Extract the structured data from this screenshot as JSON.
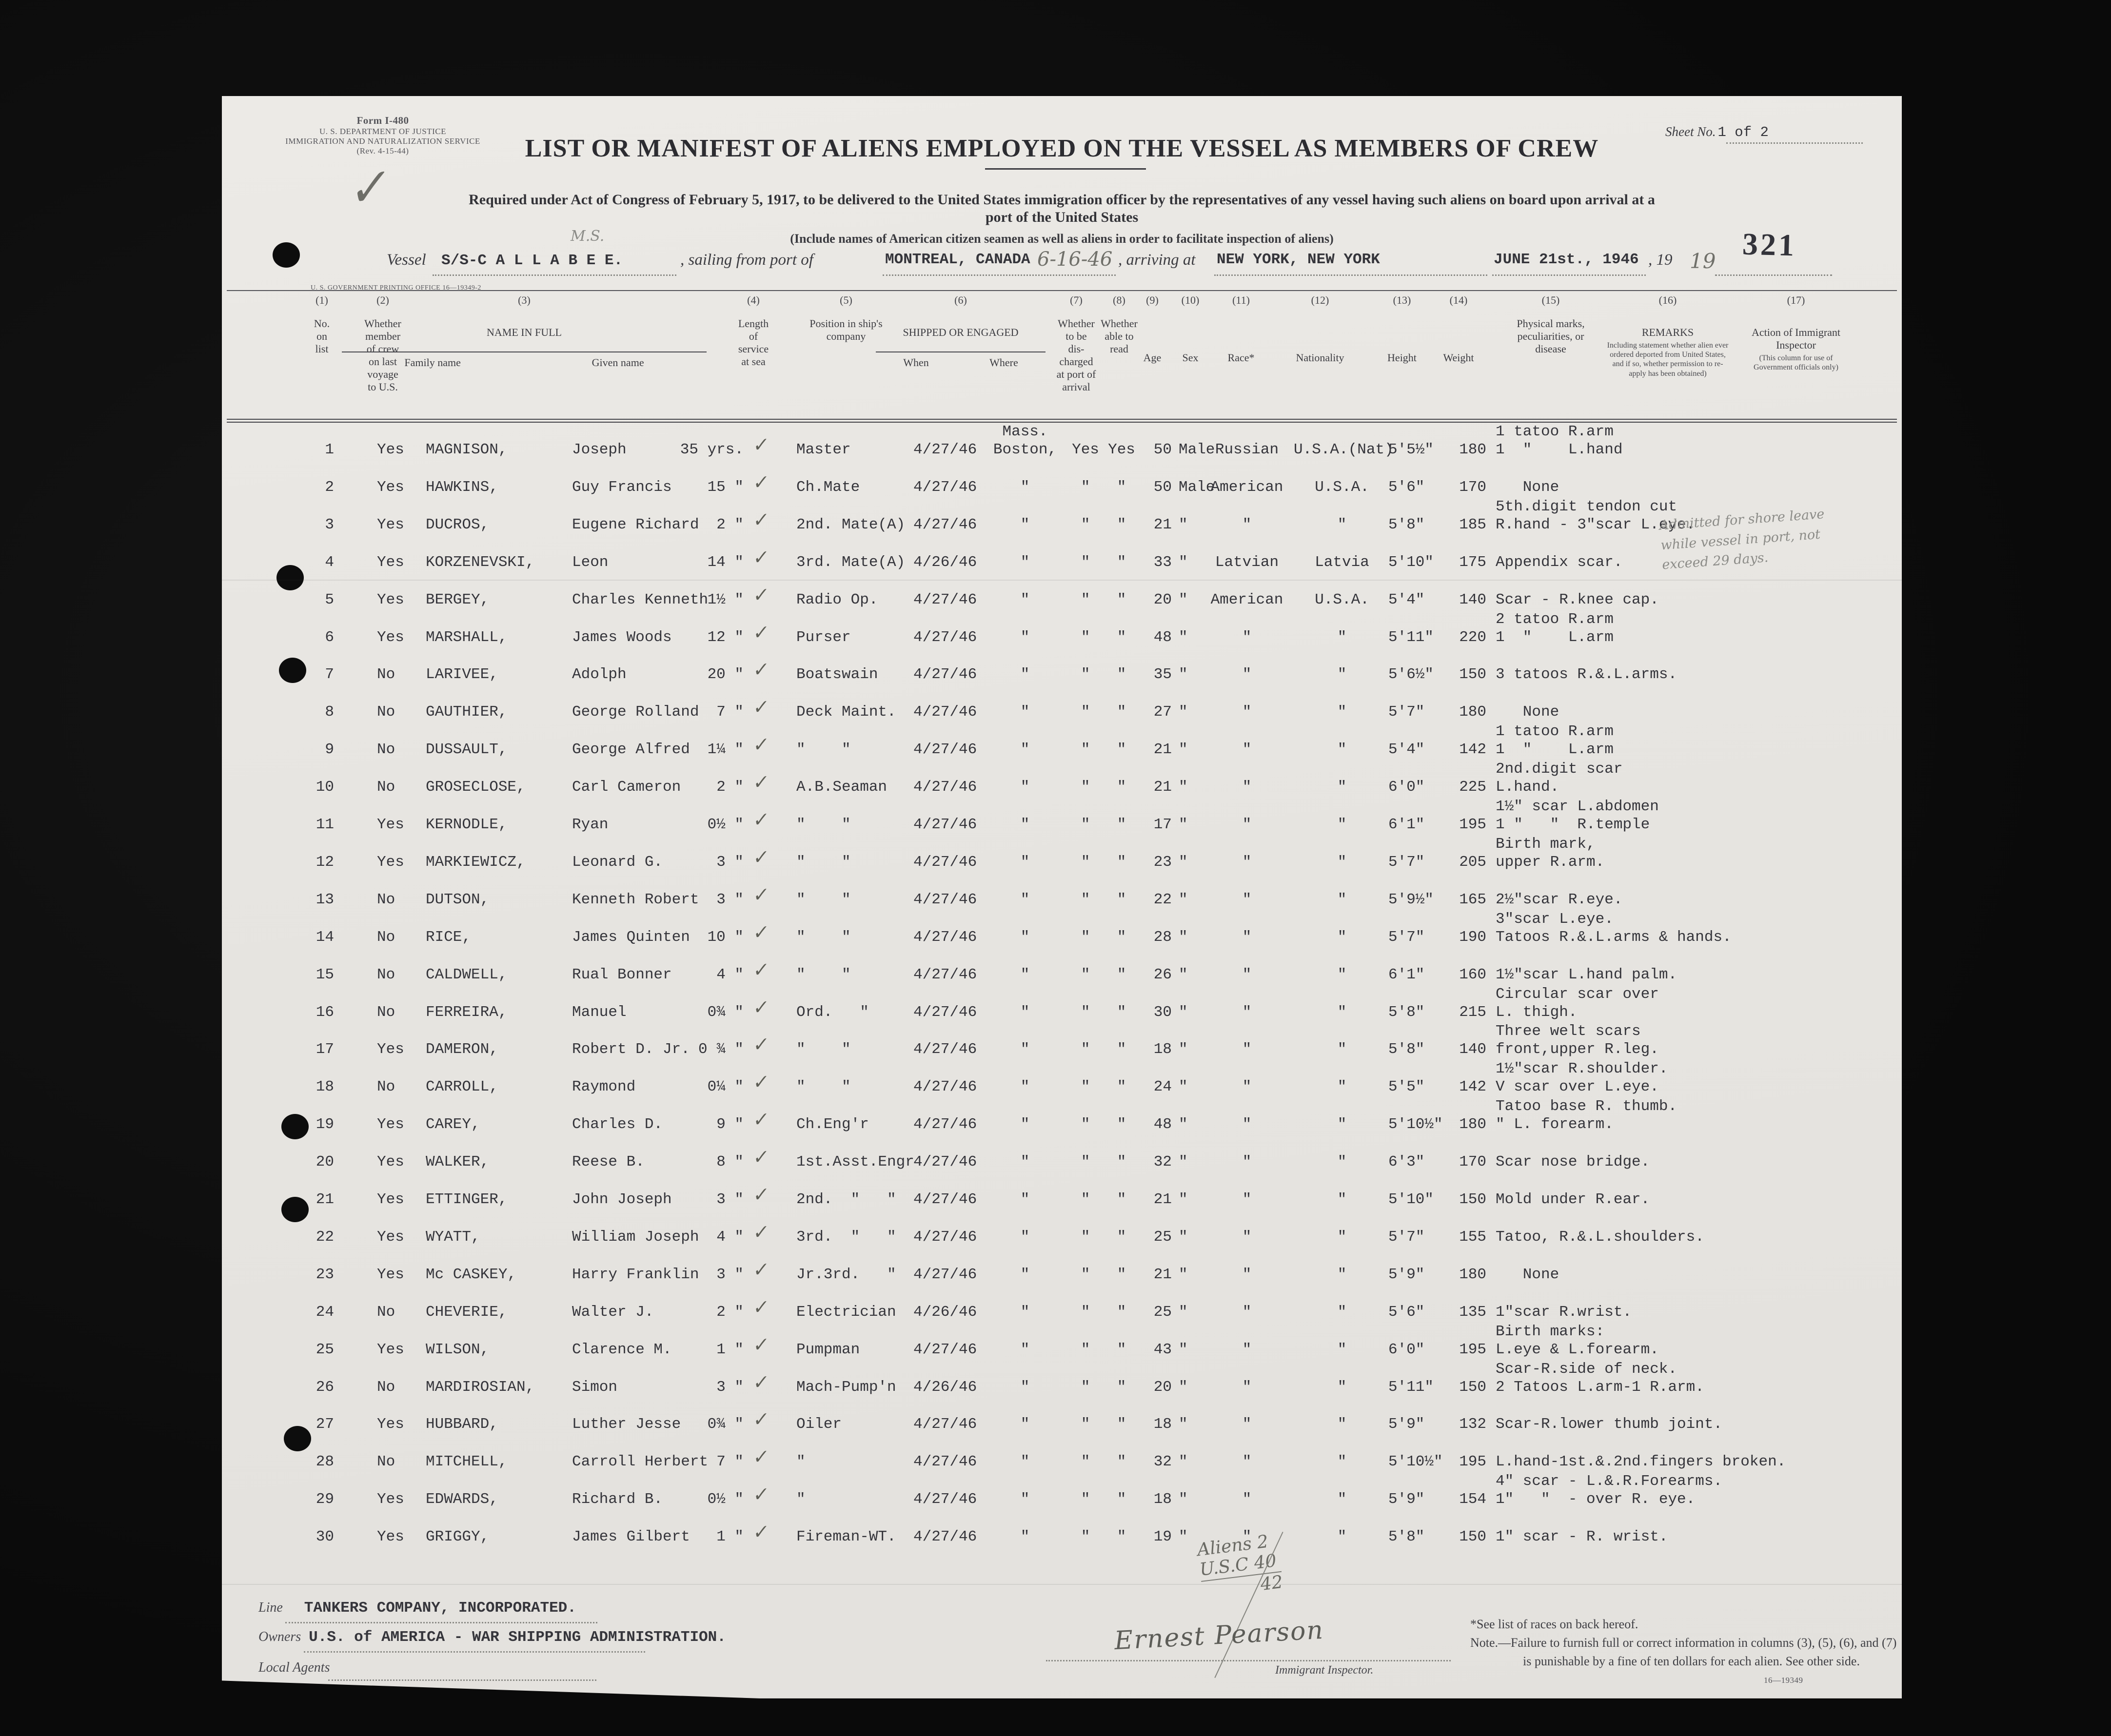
{
  "form": {
    "form_number": "Form I-480",
    "agency_line1": "U. S. DEPARTMENT OF JUSTICE",
    "agency_line2": "IMMIGRATION AND NATURALIZATION SERVICE",
    "revision": "(Rev. 4-15-44)",
    "sheet_label": "Sheet No.",
    "sheet_value": "1 of 2",
    "stamp_number": "321",
    "title": "LIST OR MANIFEST OF ALIENS EMPLOYED ON THE VESSEL AS MEMBERS OF CREW",
    "subtitle_line1": "Required under Act of Congress of February 5, 1917, to be delivered to the United States immigration officer by the representatives of any vessel having such aliens on board upon arrival at a",
    "subtitle_line2": "port of the United States",
    "subtitle2": "(Include names of American citizen seamen as well as aliens in order to facilitate inspection of aliens)",
    "print_office": "U. S. GOVERNMENT PRINTING OFFICE   16—19349-2"
  },
  "voyage": {
    "vessel_label": "Vessel",
    "vessel_name": "S/S-C A L L A B E E.",
    "sailing_label": ", sailing from port of",
    "port_of_sailing": "MONTREAL, CANADA",
    "sailing_date_hw": "6-16-46",
    "arriving_label": ", arriving at",
    "port_of_arrival": "NEW YORK, NEW YORK",
    "arrival_date": "JUNE 21st., 1946",
    "year_prefix": ", 19",
    "year_hw": "19",
    "ms_pencil": "M.S."
  },
  "columns": [
    {
      "n": "(1)",
      "label": "No.\non\nlist"
    },
    {
      "n": "(2)",
      "label": "Whether\nmember\nof crew\non last\nvoyage\nto U.S."
    },
    {
      "n": "(3)",
      "label": "NAME IN FULL",
      "subs": [
        "Family name",
        "Given name"
      ]
    },
    {
      "n": "(4)",
      "label": "Length\nof\nservice\nat sea"
    },
    {
      "n": "(5)",
      "label": "Position in ship's\ncompany"
    },
    {
      "n": "(6)",
      "label": "SHIPPED OR ENGAGED",
      "subs": [
        "When",
        "Where"
      ]
    },
    {
      "n": "(7)",
      "label": "Whether\nto be\ndis-\ncharged\nat port of\narrival"
    },
    {
      "n": "(8)",
      "label": "Whether\nable to\nread"
    },
    {
      "n": "(9)",
      "label": "Age"
    },
    {
      "n": "(10)",
      "label": "Sex"
    },
    {
      "n": "(11)",
      "label": "Race*"
    },
    {
      "n": "(12)",
      "label": "Nationality"
    },
    {
      "n": "(13)",
      "label": "Height"
    },
    {
      "n": "(14)",
      "label": "Weight"
    },
    {
      "n": "(15)",
      "label": "Physical marks,\npeculiarities, or\ndisease"
    },
    {
      "n": "(16)",
      "label": "REMARKS",
      "note": "Including statement whether alien ever\nordered deported from United States,\nand if so, whether permission to re-\napply has been obtained)"
    },
    {
      "n": "(17)",
      "label": "Action of Immigrant\nInspector",
      "note": "(This column for use of\nGovernment officials only)"
    }
  ],
  "crew": [
    {
      "no": "1",
      "member": "Yes",
      "family": "MAGNISON,",
      "given": "Joseph",
      "service": "35 yrs.",
      "position": "Master",
      "when": "4/27/46",
      "where_top": "Mass.",
      "where": "Boston,",
      "discharged": "Yes",
      "read": "Yes",
      "age": "50",
      "sex": "Male",
      "race": "Russian",
      "nationality": "U.S.A.(Nat)",
      "height": "5'5½\"",
      "weight": "180",
      "marks_top": "1 tatoo R.arm",
      "marks": "1  \"    L.hand"
    },
    {
      "no": "2",
      "member": "Yes",
      "family": "HAWKINS,",
      "given": "Guy Francis",
      "service": "15 \"",
      "position": "Ch.Mate",
      "when": "4/27/46",
      "where_top": "",
      "where": "\"",
      "discharged": "\"",
      "read": "\"",
      "age": "50",
      "sex": "Male",
      "race": "American",
      "nationality": "U.S.A.",
      "height": "5'6\"",
      "weight": "170",
      "marks_top": "",
      "marks": "   None"
    },
    {
      "no": "3",
      "member": "Yes",
      "family": "DUCROS,",
      "given": "Eugene Richard",
      "service": "2 \"",
      "position": "2nd. Mate(A)",
      "when": "4/27/46",
      "where_top": "",
      "where": "\"",
      "discharged": "\"",
      "read": "\"",
      "age": "21",
      "sex": "\"",
      "race": "\"",
      "nationality": "\"",
      "height": "5'8\"",
      "weight": "185",
      "marks_top": "5th.digit tendon cut",
      "marks": "R.hand - 3\"scar L.eye."
    },
    {
      "no": "4",
      "member": "Yes",
      "family": "KORZENEVSKI,",
      "given": "Leon",
      "service": "14 \"",
      "position": "3rd. Mate(A)",
      "when": "4/26/46",
      "where_top": "",
      "where": "\"",
      "discharged": "\"",
      "read": "\"",
      "age": "33",
      "sex": "\"",
      "race": "Latvian",
      "nationality": "Latvia",
      "height": "5'10\"",
      "weight": "175",
      "marks_top": "",
      "marks": "Appendix scar."
    },
    {
      "no": "5",
      "member": "Yes",
      "family": "BERGEY,",
      "given": "Charles Kenneth",
      "service": "1½ \"",
      "position": "Radio Op.",
      "when": "4/27/46",
      "where_top": "",
      "where": "\"",
      "discharged": "\"",
      "read": "\"",
      "age": "20",
      "sex": "\"",
      "race": "American",
      "nationality": "U.S.A.",
      "height": "5'4\"",
      "weight": "140",
      "marks_top": "",
      "marks": "Scar - R.knee cap."
    },
    {
      "no": "6",
      "member": "Yes",
      "family": "MARSHALL,",
      "given": "James Woods",
      "service": "12 \"",
      "position": "Purser",
      "when": "4/27/46",
      "where_top": "",
      "where": "\"",
      "discharged": "\"",
      "read": "\"",
      "age": "48",
      "sex": "\"",
      "race": "\"",
      "nationality": "\"",
      "height": "5'11\"",
      "weight": "220",
      "marks_top": "2 tatoo R.arm",
      "marks": "1  \"    L.arm"
    },
    {
      "no": "7",
      "member": "No",
      "family": "LARIVEE,",
      "given": "Adolph",
      "service": "20 \"",
      "position": "Boatswain",
      "when": "4/27/46",
      "where_top": "",
      "where": "\"",
      "discharged": "\"",
      "read": "\"",
      "age": "35",
      "sex": "\"",
      "race": "\"",
      "nationality": "\"",
      "height": "5'6½\"",
      "weight": "150",
      "marks_top": "",
      "marks": "3 tatoos R.&.L.arms."
    },
    {
      "no": "8",
      "member": "No",
      "family": "GAUTHIER,",
      "given": "George Rolland",
      "service": "7 \"",
      "position": "Deck Maint.",
      "when": "4/27/46",
      "where_top": "",
      "where": "\"",
      "discharged": "\"",
      "read": "\"",
      "age": "27",
      "sex": "\"",
      "race": "\"",
      "nationality": "\"",
      "height": "5'7\"",
      "weight": "180",
      "marks_top": "",
      "marks": "   None"
    },
    {
      "no": "9",
      "member": "No",
      "family": "DUSSAULT,",
      "given": "George Alfred",
      "service": "1¼ \"",
      "position": "\"    \"",
      "when": "4/27/46",
      "where_top": "",
      "where": "\"",
      "discharged": "\"",
      "read": "\"",
      "age": "21",
      "sex": "\"",
      "race": "\"",
      "nationality": "\"",
      "height": "5'4\"",
      "weight": "142",
      "marks_top": "1 tatoo R.arm",
      "marks": "1  \"    L.arm"
    },
    {
      "no": "10",
      "member": "No",
      "family": "GROSECLOSE,",
      "given": "Carl Cameron",
      "service": "2 \"",
      "position": "A.B.Seaman",
      "when": "4/27/46",
      "where_top": "",
      "where": "\"",
      "discharged": "\"",
      "read": "\"",
      "age": "21",
      "sex": "\"",
      "race": "\"",
      "nationality": "\"",
      "height": "6'0\"",
      "weight": "225",
      "marks_top": "2nd.digit scar",
      "marks": "L.hand."
    },
    {
      "no": "11",
      "member": "Yes",
      "family": "KERNODLE,",
      "given": "Ryan",
      "service": "0½ \"",
      "position": "\"    \"",
      "when": "4/27/46",
      "where_top": "",
      "where": "\"",
      "discharged": "\"",
      "read": "\"",
      "age": "17",
      "sex": "\"",
      "race": "\"",
      "nationality": "\"",
      "height": "6'1\"",
      "weight": "195",
      "marks_top": "1½\" scar L.abdomen",
      "marks": "1 \"   \"  R.temple"
    },
    {
      "no": "12",
      "member": "Yes",
      "family": "MARKIEWICZ,",
      "given": "Leonard G.",
      "service": "3 \"",
      "position": "\"    \"",
      "when": "4/27/46",
      "where_top": "",
      "where": "\"",
      "discharged": "\"",
      "read": "\"",
      "age": "23",
      "sex": "\"",
      "race": "\"",
      "nationality": "\"",
      "height": "5'7\"",
      "weight": "205",
      "marks_top": "Birth mark,",
      "marks": "upper R.arm."
    },
    {
      "no": "13",
      "member": "No",
      "family": "DUTSON,",
      "given": "Kenneth Robert",
      "service": "3 \"",
      "position": "\"    \"",
      "when": "4/27/46",
      "where_top": "",
      "where": "\"",
      "discharged": "\"",
      "read": "\"",
      "age": "22",
      "sex": "\"",
      "race": "\"",
      "nationality": "\"",
      "height": "5'9½\"",
      "weight": "165",
      "marks_top": "",
      "marks": "2½\"scar R.eye."
    },
    {
      "no": "14",
      "member": "No",
      "family": "RICE,",
      "given": "James Quinten",
      "service": "10 \"",
      "position": "\"    \"",
      "when": "4/27/46",
      "where_top": "",
      "where": "\"",
      "discharged": "\"",
      "read": "\"",
      "age": "28",
      "sex": "\"",
      "race": "\"",
      "nationality": "\"",
      "height": "5'7\"",
      "weight": "190",
      "marks_top": "3\"scar L.eye.",
      "marks": "Tatoos R.&.L.arms & hands."
    },
    {
      "no": "15",
      "member": "No",
      "family": "CALDWELL,",
      "given": "Rual Bonner",
      "service": "4 \"",
      "position": "\"    \"",
      "when": "4/27/46",
      "where_top": "",
      "where": "\"",
      "discharged": "\"",
      "read": "\"",
      "age": "26",
      "sex": "\"",
      "race": "\"",
      "nationality": "\"",
      "height": "6'1\"",
      "weight": "160",
      "marks_top": "",
      "marks": "1½\"scar L.hand palm."
    },
    {
      "no": "16",
      "member": "No",
      "family": "FERREIRA,",
      "given": "Manuel",
      "service": "0¾ \"",
      "position": "Ord.   \"",
      "when": "4/27/46",
      "where_top": "",
      "where": "\"",
      "discharged": "\"",
      "read": "\"",
      "age": "30",
      "sex": "\"",
      "race": "\"",
      "nationality": "\"",
      "height": "5'8\"",
      "weight": "215",
      "marks_top": "Circular scar over",
      "marks": "L. thigh."
    },
    {
      "no": "17",
      "member": "Yes",
      "family": "DAMERON,",
      "given": "Robert D. Jr.",
      "service": "0 ¾ \"",
      "position": "\"    \"",
      "when": "4/27/46",
      "where_top": "",
      "where": "\"",
      "discharged": "\"",
      "read": "\"",
      "age": "18",
      "sex": "\"",
      "race": "\"",
      "nationality": "\"",
      "height": "5'8\"",
      "weight": "140",
      "marks_top": "Three welt scars",
      "marks": "front,upper R.leg."
    },
    {
      "no": "18",
      "member": "No",
      "family": "CARROLL,",
      "given": "Raymond",
      "service": "0¼ \"",
      "position": "\"    \"",
      "when": "4/27/46",
      "where_top": "",
      "where": "\"",
      "discharged": "\"",
      "read": "\"",
      "age": "24",
      "sex": "\"",
      "race": "\"",
      "nationality": "\"",
      "height": "5'5\"",
      "weight": "142",
      "marks_top": "1½\"scar R.shoulder.",
      "marks": "V scar over L.eye."
    },
    {
      "no": "19",
      "member": "Yes",
      "family": "CAREY,",
      "given": "Charles D.",
      "service": "9 \"",
      "position": "Ch.Eng'r",
      "when": "4/27/46",
      "where_top": "",
      "where": "\"",
      "discharged": "\"",
      "read": "\"",
      "age": "48",
      "sex": "\"",
      "race": "\"",
      "nationality": "\"",
      "height": "5'10½\"",
      "weight": "180",
      "marks_top": "Tatoo base R. thumb.",
      "marks": "\" L. forearm."
    },
    {
      "no": "20",
      "member": "Yes",
      "family": "WALKER,",
      "given": "Reese B.",
      "service": "8 \"",
      "position": "1st.Asst.Engr",
      "when": "4/27/46",
      "where_top": "",
      "where": "\"",
      "discharged": "\"",
      "read": "\"",
      "age": "32",
      "sex": "\"",
      "race": "\"",
      "nationality": "\"",
      "height": "6'3\"",
      "weight": "170",
      "marks_top": "",
      "marks": "Scar nose bridge."
    },
    {
      "no": "21",
      "member": "Yes",
      "family": "ETTINGER,",
      "given": "John Joseph",
      "service": "3 \"",
      "position": "2nd.  \"   \"",
      "when": "4/27/46",
      "where_top": "",
      "where": "\"",
      "discharged": "\"",
      "read": "\"",
      "age": "21",
      "sex": "\"",
      "race": "\"",
      "nationality": "\"",
      "height": "5'10\"",
      "weight": "150",
      "marks_top": "",
      "marks": "Mold under R.ear."
    },
    {
      "no": "22",
      "member": "Yes",
      "family": "WYATT,",
      "given": "William Joseph",
      "service": "4 \"",
      "position": "3rd.  \"   \"",
      "when": "4/27/46",
      "where_top": "",
      "where": "\"",
      "discharged": "\"",
      "read": "\"",
      "age": "25",
      "sex": "\"",
      "race": "\"",
      "nationality": "\"",
      "height": "5'7\"",
      "weight": "155",
      "marks_top": "",
      "marks": "Tatoo, R.&.L.shoulders."
    },
    {
      "no": "23",
      "member": "Yes",
      "family": "Mc CASKEY,",
      "given": "Harry Franklin",
      "service": "3 \"",
      "position": "Jr.3rd.   \"",
      "when": "4/27/46",
      "where_top": "",
      "where": "\"",
      "discharged": "\"",
      "read": "\"",
      "age": "21",
      "sex": "\"",
      "race": "\"",
      "nationality": "\"",
      "height": "5'9\"",
      "weight": "180",
      "marks_top": "",
      "marks": "   None"
    },
    {
      "no": "24",
      "member": "No",
      "family": "CHEVERIE,",
      "given": "Walter J.",
      "service": "2 \"",
      "position": "Electrician",
      "when": "4/26/46",
      "where_top": "",
      "where": "\"",
      "discharged": "\"",
      "read": "\"",
      "age": "25",
      "sex": "\"",
      "race": "\"",
      "nationality": "\"",
      "height": "5'6\"",
      "weight": "135",
      "marks_top": "",
      "marks": "1\"scar R.wrist."
    },
    {
      "no": "25",
      "member": "Yes",
      "family": "WILSON,",
      "given": "Clarence M.",
      "service": "1 \"",
      "position": "Pumpman",
      "when": "4/27/46",
      "where_top": "",
      "where": "\"",
      "discharged": "\"",
      "read": "\"",
      "age": "43",
      "sex": "\"",
      "race": "\"",
      "nationality": "\"",
      "height": "6'0\"",
      "weight": "195",
      "marks_top": "Birth marks:",
      "marks": "L.eye & L.forearm."
    },
    {
      "no": "26",
      "member": "No",
      "family": "MARDIROSIAN,",
      "given": "Simon",
      "service": "3 \"",
      "position": "Mach-Pump'n",
      "when": "4/26/46",
      "where_top": "",
      "where": "\"",
      "discharged": "\"",
      "read": "\"",
      "age": "20",
      "sex": "\"",
      "race": "\"",
      "nationality": "\"",
      "height": "5'11\"",
      "weight": "150",
      "marks_top": "Scar-R.side of neck.",
      "marks": "2 Tatoos L.arm-1 R.arm."
    },
    {
      "no": "27",
      "member": "Yes",
      "family": "HUBBARD,",
      "given": "Luther Jesse",
      "service": "0¾ \"",
      "position": "Oiler",
      "when": "4/27/46",
      "where_top": "",
      "where": "\"",
      "discharged": "\"",
      "read": "\"",
      "age": "18",
      "sex": "\"",
      "race": "\"",
      "nationality": "\"",
      "height": "5'9\"",
      "weight": "132",
      "marks_top": "",
      "marks": "Scar-R.lower thumb joint."
    },
    {
      "no": "28",
      "member": "No",
      "family": "MITCHELL,",
      "given": "Carroll Herbert",
      "service": "7 \"",
      "position": "\"",
      "when": "4/27/46",
      "where_top": "",
      "where": "\"",
      "discharged": "\"",
      "read": "\"",
      "age": "32",
      "sex": "\"",
      "race": "\"",
      "nationality": "\"",
      "height": "5'10½\"",
      "weight": "195",
      "marks_top": "",
      "marks": "L.hand-1st.&.2nd.fingers broken."
    },
    {
      "no": "29",
      "member": "Yes",
      "family": "EDWARDS,",
      "given": "Richard B.",
      "service": "0½ \"",
      "position": "\"",
      "when": "4/27/46",
      "where_top": "",
      "where": "\"",
      "discharged": "\"",
      "read": "\"",
      "age": "18",
      "sex": "\"",
      "race": "\"",
      "nationality": "\"",
      "height": "5'9\"",
      "weight": "154",
      "marks_top": "4\" scar - L.&.R.Forearms.",
      "marks": "1\"   \"  - over R. eye."
    },
    {
      "no": "30",
      "member": "Yes",
      "family": "GRIGGY,",
      "given": "James Gilbert",
      "service": "1 \"",
      "position": "Fireman-WT.",
      "when": "4/27/46",
      "where_top": "",
      "where": "\"",
      "discharged": "\"",
      "read": "\"",
      "age": "19",
      "sex": "\"",
      "race": "\"",
      "nationality": "\"",
      "height": "5'8\"",
      "weight": "150",
      "marks_top": "",
      "marks": "1\" scar - R. wrist."
    }
  ],
  "annotations": {
    "big_check": "✓",
    "shore_leave_line1": "Admitted for shore leave",
    "shore_leave_line2": "while vessel in port, not",
    "shore_leave_line3": "exceed 29 days.",
    "tally_line1": "Aliens  2",
    "tally_line2": "U.S.C  40",
    "tally_total": "42",
    "signature": "Ernest Pearson"
  },
  "footer": {
    "line_label": "Line",
    "line_value": "TANKERS COMPANY, INCORPORATED.",
    "owners_label": "Owners",
    "owners_value": "U.S. of AMERICA - WAR SHIPPING ADMINISTRATION.",
    "local_agents_label": "Local Agents",
    "inspector_label": "Immigrant Inspector.",
    "races_note": "*See list of races on back hereof.",
    "note_line1": "Note.—Failure to furnish full or correct information in columns (3), (5), (6), and (7)",
    "note_line2": "is punishable by a fine of ten dollars for each alien.   See other side.",
    "print_code": "16—19349"
  }
}
